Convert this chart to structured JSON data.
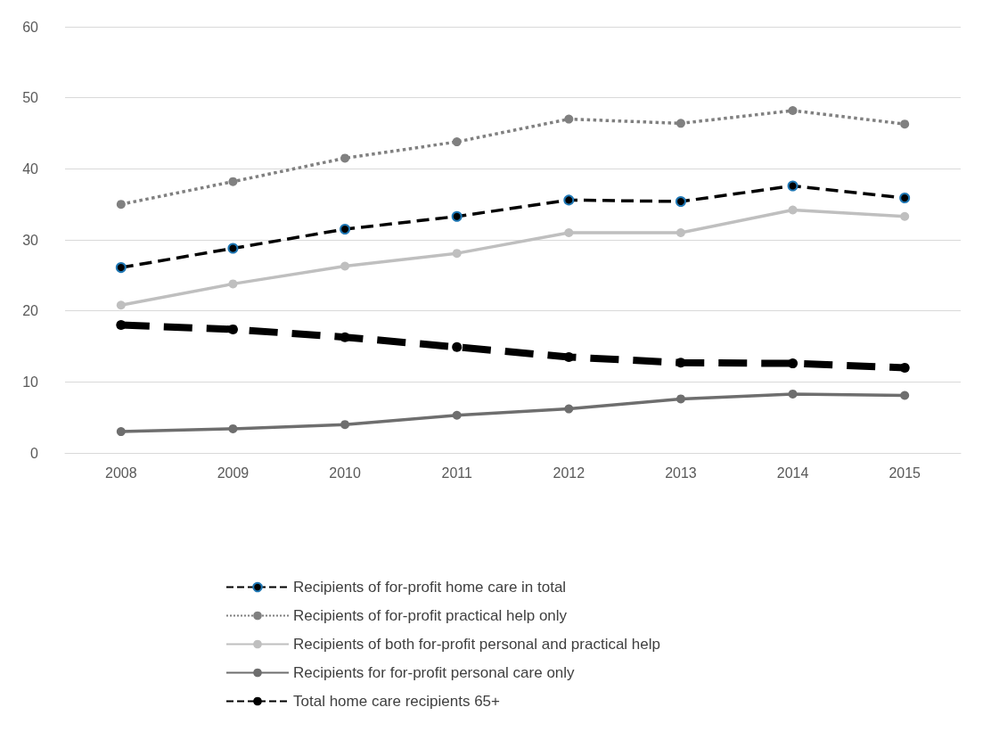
{
  "chart_data": {
    "type": "line",
    "categories": [
      "2008",
      "2009",
      "2010",
      "2011",
      "2012",
      "2013",
      "2014",
      "2015"
    ],
    "ylim": [
      0,
      60
    ],
    "yticks": [
      0,
      10,
      20,
      30,
      40,
      50,
      60
    ],
    "grid": "y",
    "legend": "bottom",
    "marker": "circle",
    "series": [
      {
        "name": "Recipients of for-profit home care in total",
        "color": "#000000",
        "line_style": "dashed",
        "values": [
          26.1,
          28.8,
          31.5,
          33.3,
          35.6,
          35.4,
          37.6,
          35.9
        ]
      },
      {
        "name": "Recipients of for-profit practical help only",
        "color": "#808080",
        "line_style": "dotted",
        "values": [
          35.0,
          38.2,
          41.5,
          43.8,
          47.0,
          46.4,
          48.2,
          46.3
        ]
      },
      {
        "name": "Recipients of both for-profit personal and practical help",
        "color": "#bfbfbf",
        "line_style": "solid",
        "values": [
          20.8,
          23.8,
          26.3,
          28.1,
          31.0,
          31.0,
          34.2,
          33.3
        ]
      },
      {
        "name": "Recipients for for-profit personal care only",
        "color": "#6e6e6e",
        "line_style": "solid",
        "values": [
          3.0,
          3.4,
          4.0,
          5.3,
          6.2,
          7.6,
          8.3,
          8.1
        ]
      },
      {
        "name": "Total home care recipients 65+",
        "color": "#000000",
        "line_style": "dashed",
        "values": [
          18.0,
          17.4,
          16.3,
          14.9,
          13.5,
          12.7,
          12.6,
          12.0
        ]
      }
    ]
  }
}
